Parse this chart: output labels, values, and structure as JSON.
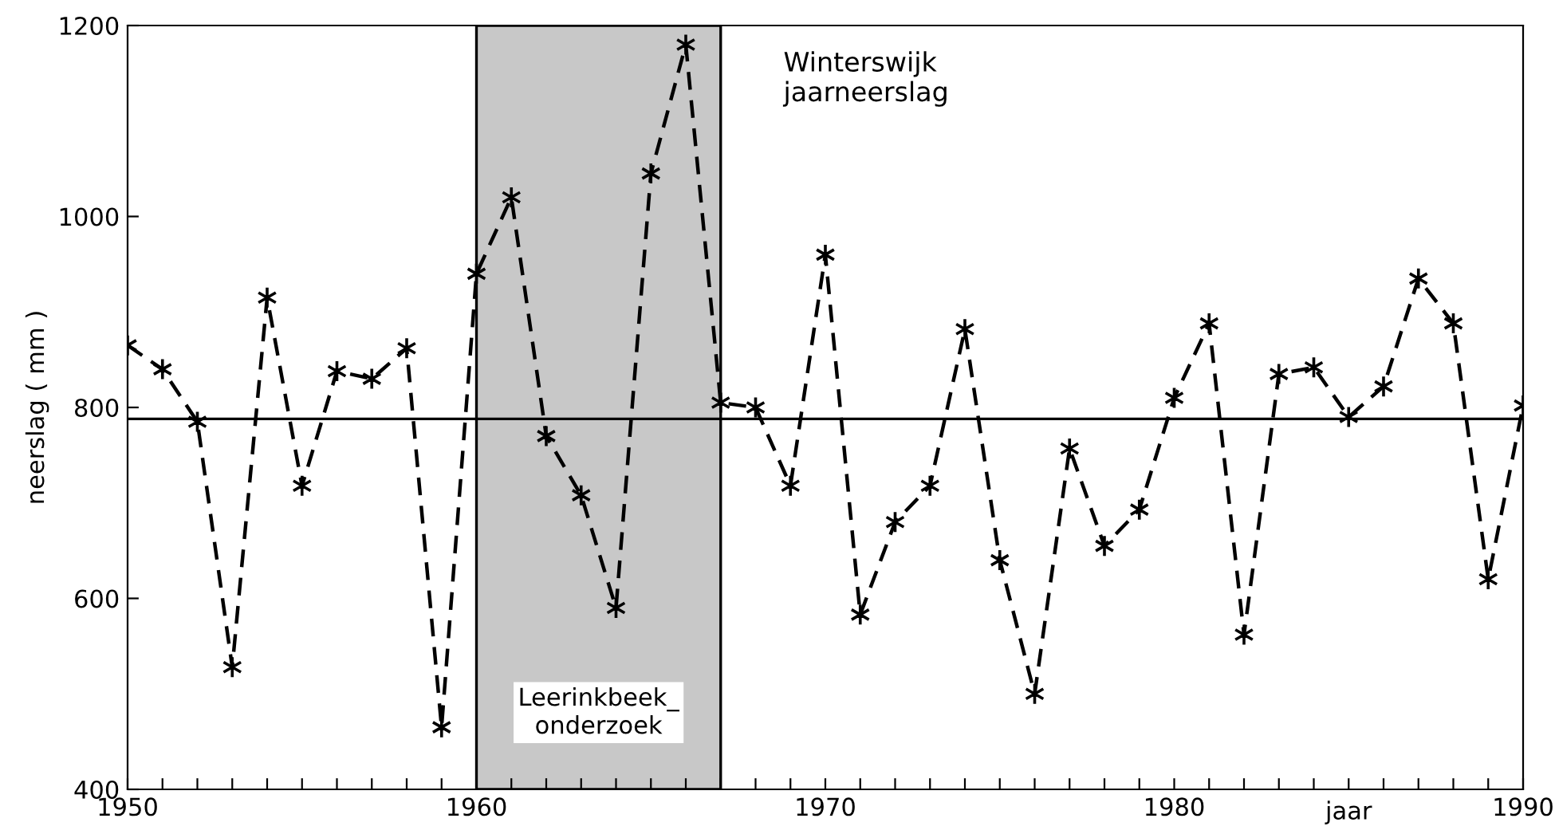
{
  "chart_data": {
    "type": "line",
    "ylabel": "neerslag ( mm )",
    "xlabel": "jaar",
    "x": [
      1950,
      1951,
      1952,
      1953,
      1954,
      1955,
      1956,
      1957,
      1958,
      1959,
      1960,
      1961,
      1962,
      1963,
      1964,
      1965,
      1966,
      1967,
      1968,
      1969,
      1970,
      1971,
      1972,
      1973,
      1974,
      1975,
      1976,
      1977,
      1978,
      1979,
      1980,
      1981,
      1982,
      1983,
      1984,
      1985,
      1986,
      1987,
      1988,
      1989,
      1990
    ],
    "series": [
      {
        "color": "#000000",
        "values": [
          865,
          840,
          785,
          528,
          915,
          718,
          838,
          830,
          862,
          465,
          940,
          1020,
          770,
          708,
          590,
          1045,
          1180,
          805,
          800,
          718,
          960,
          583,
          680,
          718,
          882,
          640,
          500,
          757,
          655,
          693,
          810,
          888,
          562,
          835,
          842,
          790,
          822,
          935,
          888,
          620,
          802
        ]
      }
    ],
    "marker": "cross",
    "line_style": "dashed",
    "xlim": [
      1950,
      1990
    ],
    "ylim": [
      400,
      1200
    ],
    "xticks": [
      1950,
      {
        "value": 1951,
        "label": null
      },
      {
        "value": 1952,
        "label": null
      },
      {
        "value": 1953,
        "label": null
      },
      {
        "value": 1954,
        "label": null
      },
      {
        "value": 1955,
        "label": null
      },
      {
        "value": 1956,
        "label": null
      },
      {
        "value": 1957,
        "label": null
      },
      {
        "value": 1958,
        "label": null
      },
      {
        "value": 1959,
        "label": null
      },
      1960,
      {
        "value": 1961,
        "label": null
      },
      {
        "value": 1962,
        "label": null
      },
      {
        "value": 1963,
        "label": null
      },
      {
        "value": 1964,
        "label": null
      },
      {
        "value": 1965,
        "label": null
      },
      {
        "value": 1966,
        "label": null
      },
      {
        "value": 1967,
        "label": null
      },
      {
        "value": 1968,
        "label": null
      },
      {
        "value": 1969,
        "label": null
      },
      1970,
      {
        "value": 1971,
        "label": null
      },
      {
        "value": 1972,
        "label": null
      },
      {
        "value": 1973,
        "label": null
      },
      {
        "value": 1974,
        "label": null
      },
      {
        "value": 1975,
        "label": null
      },
      {
        "value": 1976,
        "label": null
      },
      {
        "value": 1977,
        "label": null
      },
      {
        "value": 1978,
        "label": null
      },
      {
        "value": 1979,
        "label": null
      },
      1980,
      {
        "value": 1981,
        "label": null
      },
      {
        "value": 1982,
        "label": null
      },
      {
        "value": 1983,
        "label": null
      },
      {
        "value": 1984,
        "label": null
      },
      {
        "value": 1985,
        "label": null
      },
      {
        "value": 1986,
        "label": null
      },
      {
        "value": 1987,
        "label": null
      },
      {
        "value": 1988,
        "label": null
      },
      {
        "value": 1989,
        "label": null
      },
      1990
    ],
    "yticks": [
      400,
      600,
      800,
      1000,
      1200
    ],
    "ref_lines": [
      {
        "axis": "y",
        "value": 788,
        "color": "#000000",
        "line_style": "solid"
      }
    ],
    "bands": [
      {
        "axis": "x",
        "from": 1960,
        "to": 1967,
        "label": "Leerinkbeek_\nonderzoek",
        "color": "#c8c8c8"
      }
    ],
    "annotations": [
      "Winterswijk\njaarneerslag"
    ],
    "grid": false,
    "legend": false
  }
}
